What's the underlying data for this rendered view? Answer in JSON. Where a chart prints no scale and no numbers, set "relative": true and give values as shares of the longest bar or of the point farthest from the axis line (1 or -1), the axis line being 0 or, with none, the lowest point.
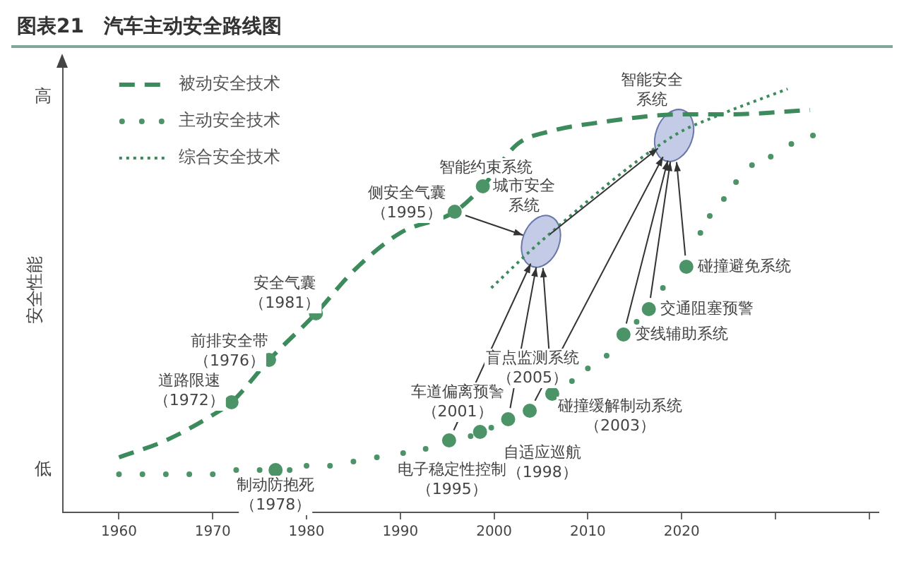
{
  "chart_data": {
    "type": "line",
    "title": "图表21　汽车主动安全路线图",
    "ylabel": "安全性能",
    "relative": true,
    "legend": "top left",
    "xlim": [
      1954,
      2041
    ],
    "xticks": [
      1960,
      1970,
      1980,
      1990,
      2000,
      2010,
      2020,
      {
        "value": 2030,
        "label": null
      },
      {
        "value": 2040,
        "label": null
      }
    ],
    "series": [
      {
        "name": "被动安全技术",
        "type": "line",
        "line_style": "dashed",
        "marker": "none",
        "color": "#3d8b5c",
        "x": [
          1960,
          1965,
          1970,
          1972,
          1976,
          1981,
          1985,
          1990,
          1995.8,
          1998.8,
          2002.5,
          2006,
          2011,
          2020,
          2025,
          2033.7
        ],
        "values": [
          0.13,
          0.17,
          0.23,
          0.26,
          0.36,
          0.47,
          0.57,
          0.66,
          0.71,
          0.77,
          0.87,
          0.9,
          0.92,
          0.94,
          0.94,
          0.95
        ]
      },
      {
        "name": "主动安全技术",
        "type": "scatter",
        "marker": "circle",
        "color": "#4c9467",
        "x": [
          1960,
          1962.5,
          1965,
          1967.5,
          1970,
          1972.5,
          1975,
          1978.2,
          1980,
          1982.5,
          1985,
          1987.5,
          1990.3,
          1992.7,
          1997.5,
          1999.7,
          2008.3,
          2010,
          2012,
          2015.2,
          2018,
          2022,
          2023,
          2024.5,
          2025.8,
          2027.5,
          2029.5,
          2031.7,
          2034
        ],
        "values": [
          0.09,
          0.09,
          0.09,
          0.09,
          0.09,
          0.1,
          0.1,
          0.1,
          0.11,
          0.11,
          0.12,
          0.13,
          0.14,
          0.15,
          0.18,
          0.2,
          0.31,
          0.34,
          0.37,
          0.45,
          0.53,
          0.66,
          0.7,
          0.74,
          0.78,
          0.82,
          0.84,
          0.87,
          0.89
        ]
      },
      {
        "name": "综合安全技术",
        "type": "line",
        "line_style": "dotted",
        "marker": "none",
        "color": "#3d8b5c",
        "x": [
          1999.7,
          2005,
          2019.2,
          2024.2,
          2031.3
        ],
        "values": [
          0.53,
          0.64,
          0.89,
          0.94,
          1
        ]
      },
      {
        "type": "scatter",
        "marker": "circle",
        "color": "#4c9467",
        "x": [
          1972,
          1976,
          1981,
          1995.8,
          1998.8,
          1976.7,
          1995.2,
          1998.5,
          2001.5,
          2003.8,
          2006.2,
          2013.8,
          2016.5,
          2020.5
        ],
        "values": [
          0.26,
          0.36,
          0.47,
          0.71,
          0.77,
          0.1,
          0.17,
          0.19,
          0.22,
          0.24,
          0.28,
          0.42,
          0.48,
          0.58
        ]
      }
    ],
    "annotations": [
      {
        "text": "道路限速（1972）",
        "x": 1972,
        "y": 0.26
      },
      {
        "text": "前排安全带（1976）",
        "x": 1976,
        "y": 0.36
      },
      {
        "text": "安全气囊（1981）",
        "x": 1981,
        "y": 0.47
      },
      {
        "text": "侧安全气囊（1995）",
        "x": 1995.8,
        "y": 0.71
      },
      {
        "text": "智能约束系统",
        "x": 1998.8,
        "y": 0.77
      },
      {
        "text": "制动防抱死（1978）",
        "x": 1976.7,
        "y": 0.1
      },
      {
        "text": "电子稳定性控制（1995）",
        "x": 1995.2,
        "y": 0.17
      },
      {
        "text": "自适应巡航（1998）",
        "x": 1998.5,
        "y": 0.19
      },
      {
        "text": "车道偏离预警（2001）",
        "x": 2001.5,
        "y": 0.22
      },
      {
        "text": "碰撞缓解制动系统（2003）",
        "x": 2003.8,
        "y": 0.24
      },
      {
        "text": "盲点监测系统（2005）",
        "x": 2006.2,
        "y": 0.28
      },
      {
        "text": "变线辅助系统",
        "x": 2013.8,
        "y": 0.42
      },
      {
        "text": "交通阻塞预警",
        "x": 2016.5,
        "y": 0.48
      },
      {
        "text": "碰撞避免系统",
        "x": 2020.5,
        "y": 0.58
      },
      {
        "text": "城市安全系统",
        "x": 2005,
        "y": 0.64
      },
      {
        "text": "智能安全系统",
        "x": 2019.2,
        "y": 0.89
      },
      "高",
      "低"
    ]
  }
}
